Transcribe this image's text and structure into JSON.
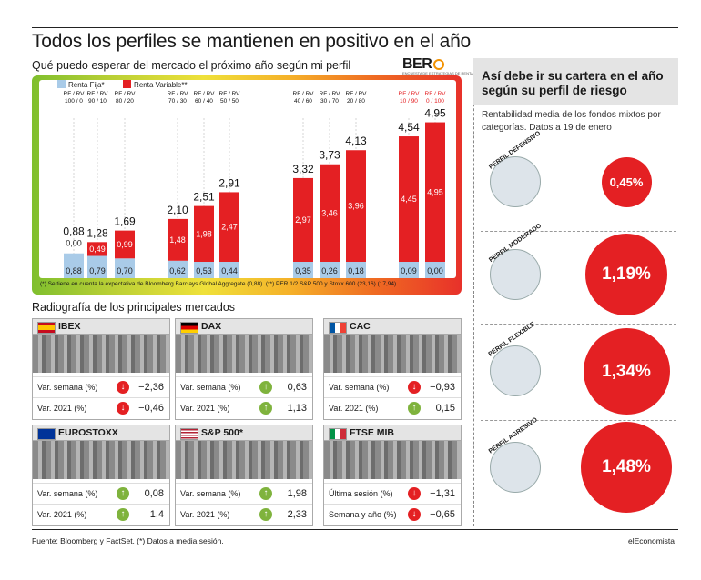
{
  "header": {
    "title": "Todos los perfiles se mantienen en positivo en el año",
    "subtitle": "Qué puedo esperar del mercado el próximo año según mi perfil",
    "logo": "BER",
    "logo_sub": "ENCUESTA DE ESTRATEGIAS DE RENTABILIDAD"
  },
  "chart_data": {
    "type": "bar",
    "stacked": true,
    "legend": [
      {
        "name": "Renta Fija*",
        "color": "#a9cbe8"
      },
      {
        "name": "Renta Variable**",
        "color": "#e42023"
      }
    ],
    "categories": [
      "RF / RV 100 / 0",
      "RF / RV 90 / 10",
      "RF / RV 80 / 20",
      "RF / RV 70 / 30",
      "RF / RV 60 / 40",
      "RF / RV 50 / 50",
      "RF / RV 40 / 60",
      "RF / RV 30 / 70",
      "RF / RV 20 / 80",
      "RF / RV 10 / 90",
      "RF / RV 0 / 100"
    ],
    "series": [
      {
        "name": "Renta Fija*",
        "values": [
          0.88,
          0.79,
          0.7,
          0.62,
          0.53,
          0.44,
          0.35,
          0.26,
          0.18,
          0.09,
          0.0
        ]
      },
      {
        "name": "Renta Variable**",
        "values": [
          0.0,
          0.49,
          0.99,
          1.48,
          1.98,
          2.47,
          2.97,
          3.46,
          3.96,
          4.45,
          4.95
        ]
      }
    ],
    "totals": [
      0.88,
      1.28,
      1.69,
      2.1,
      2.51,
      2.91,
      3.32,
      3.73,
      4.13,
      4.54,
      4.95
    ],
    "fija_labels": [
      "0,88",
      "0,79",
      "0,70",
      "0,62",
      "0,53",
      "0,44",
      "0,35",
      "0,26",
      "0,18",
      "0,09",
      "0,00"
    ],
    "variable_labels": [
      "0,00",
      "0,49",
      "0,99",
      "1,48",
      "1,98",
      "2,47",
      "2,97",
      "3,46",
      "3,96",
      "4,45",
      "4,95"
    ],
    "total_labels": [
      "0,88",
      "1,28",
      "1,69",
      "2,10",
      "2,51",
      "2,91",
      "3,32",
      "3,73",
      "4,13",
      "4,54",
      "4,95"
    ],
    "ylim": [
      0,
      5.2
    ]
  },
  "footnote": "(*) Se tiene en cuenta la expectativa de Bloomberg Barclays Global Aggregate (0,88). (**) PER 1/2 S&P 500 y Stoxx 600 (23,16) (17,94)",
  "markets": {
    "title": "Radiografía de los principales mercados",
    "cards": [
      {
        "name": "IBEX",
        "flag": "es",
        "rows": [
          {
            "label": "Var. semana (%)",
            "dir": "down",
            "value": "−2,36"
          },
          {
            "label": "Var. 2021 (%)",
            "dir": "down",
            "value": "−0,46"
          }
        ]
      },
      {
        "name": "DAX",
        "flag": "de",
        "rows": [
          {
            "label": "Var. semana (%)",
            "dir": "up",
            "value": "0,63"
          },
          {
            "label": "Var. 2021 (%)",
            "dir": "up",
            "value": "1,13"
          }
        ]
      },
      {
        "name": "CAC",
        "flag": "fr",
        "rows": [
          {
            "label": "Var. semana (%)",
            "dir": "down",
            "value": "−0,93"
          },
          {
            "label": "Var. 2021 (%)",
            "dir": "up",
            "value": "0,15"
          }
        ]
      },
      {
        "name": "EUROSTOXX",
        "flag": "eu",
        "rows": [
          {
            "label": "Var. semana (%)",
            "dir": "up",
            "value": "0,08"
          },
          {
            "label": "Var. 2021 (%)",
            "dir": "up",
            "value": "1,4"
          }
        ]
      },
      {
        "name": "S&P 500*",
        "flag": "us",
        "rows": [
          {
            "label": "Var. semana (%)",
            "dir": "up",
            "value": "1,98"
          },
          {
            "label": "Var. 2021 (%)",
            "dir": "up",
            "value": "2,33"
          }
        ]
      },
      {
        "name": "FTSE MIB",
        "flag": "it",
        "rows": [
          {
            "label": "Última sesión (%)",
            "dir": "down",
            "value": "−1,31"
          },
          {
            "label": "Semana y año (%)",
            "dir": "down",
            "value": "−0,65"
          }
        ]
      }
    ]
  },
  "sidebar": {
    "title": "Así debe ir su cartera en el año según su perfil de riesgo",
    "description": "Rentabilidad media de los fondos mixtos por categorías. Datos a 19 de enero",
    "profiles": [
      {
        "label": "PERFIL DEFENSIVO",
        "value": "0,45%",
        "num": 0.45
      },
      {
        "label": "PERFIL MODERADO",
        "value": "1,19%",
        "num": 1.19
      },
      {
        "label": "PERFIL FLEXIBLE",
        "value": "1,34%",
        "num": 1.34
      },
      {
        "label": "PERFIL AGRESIVO",
        "value": "1,48%",
        "num": 1.48
      }
    ]
  },
  "footer": {
    "source": "Fuente: Bloomberg y FactSet. (*) Datos a media sesión.",
    "brand": "elEconomista"
  }
}
